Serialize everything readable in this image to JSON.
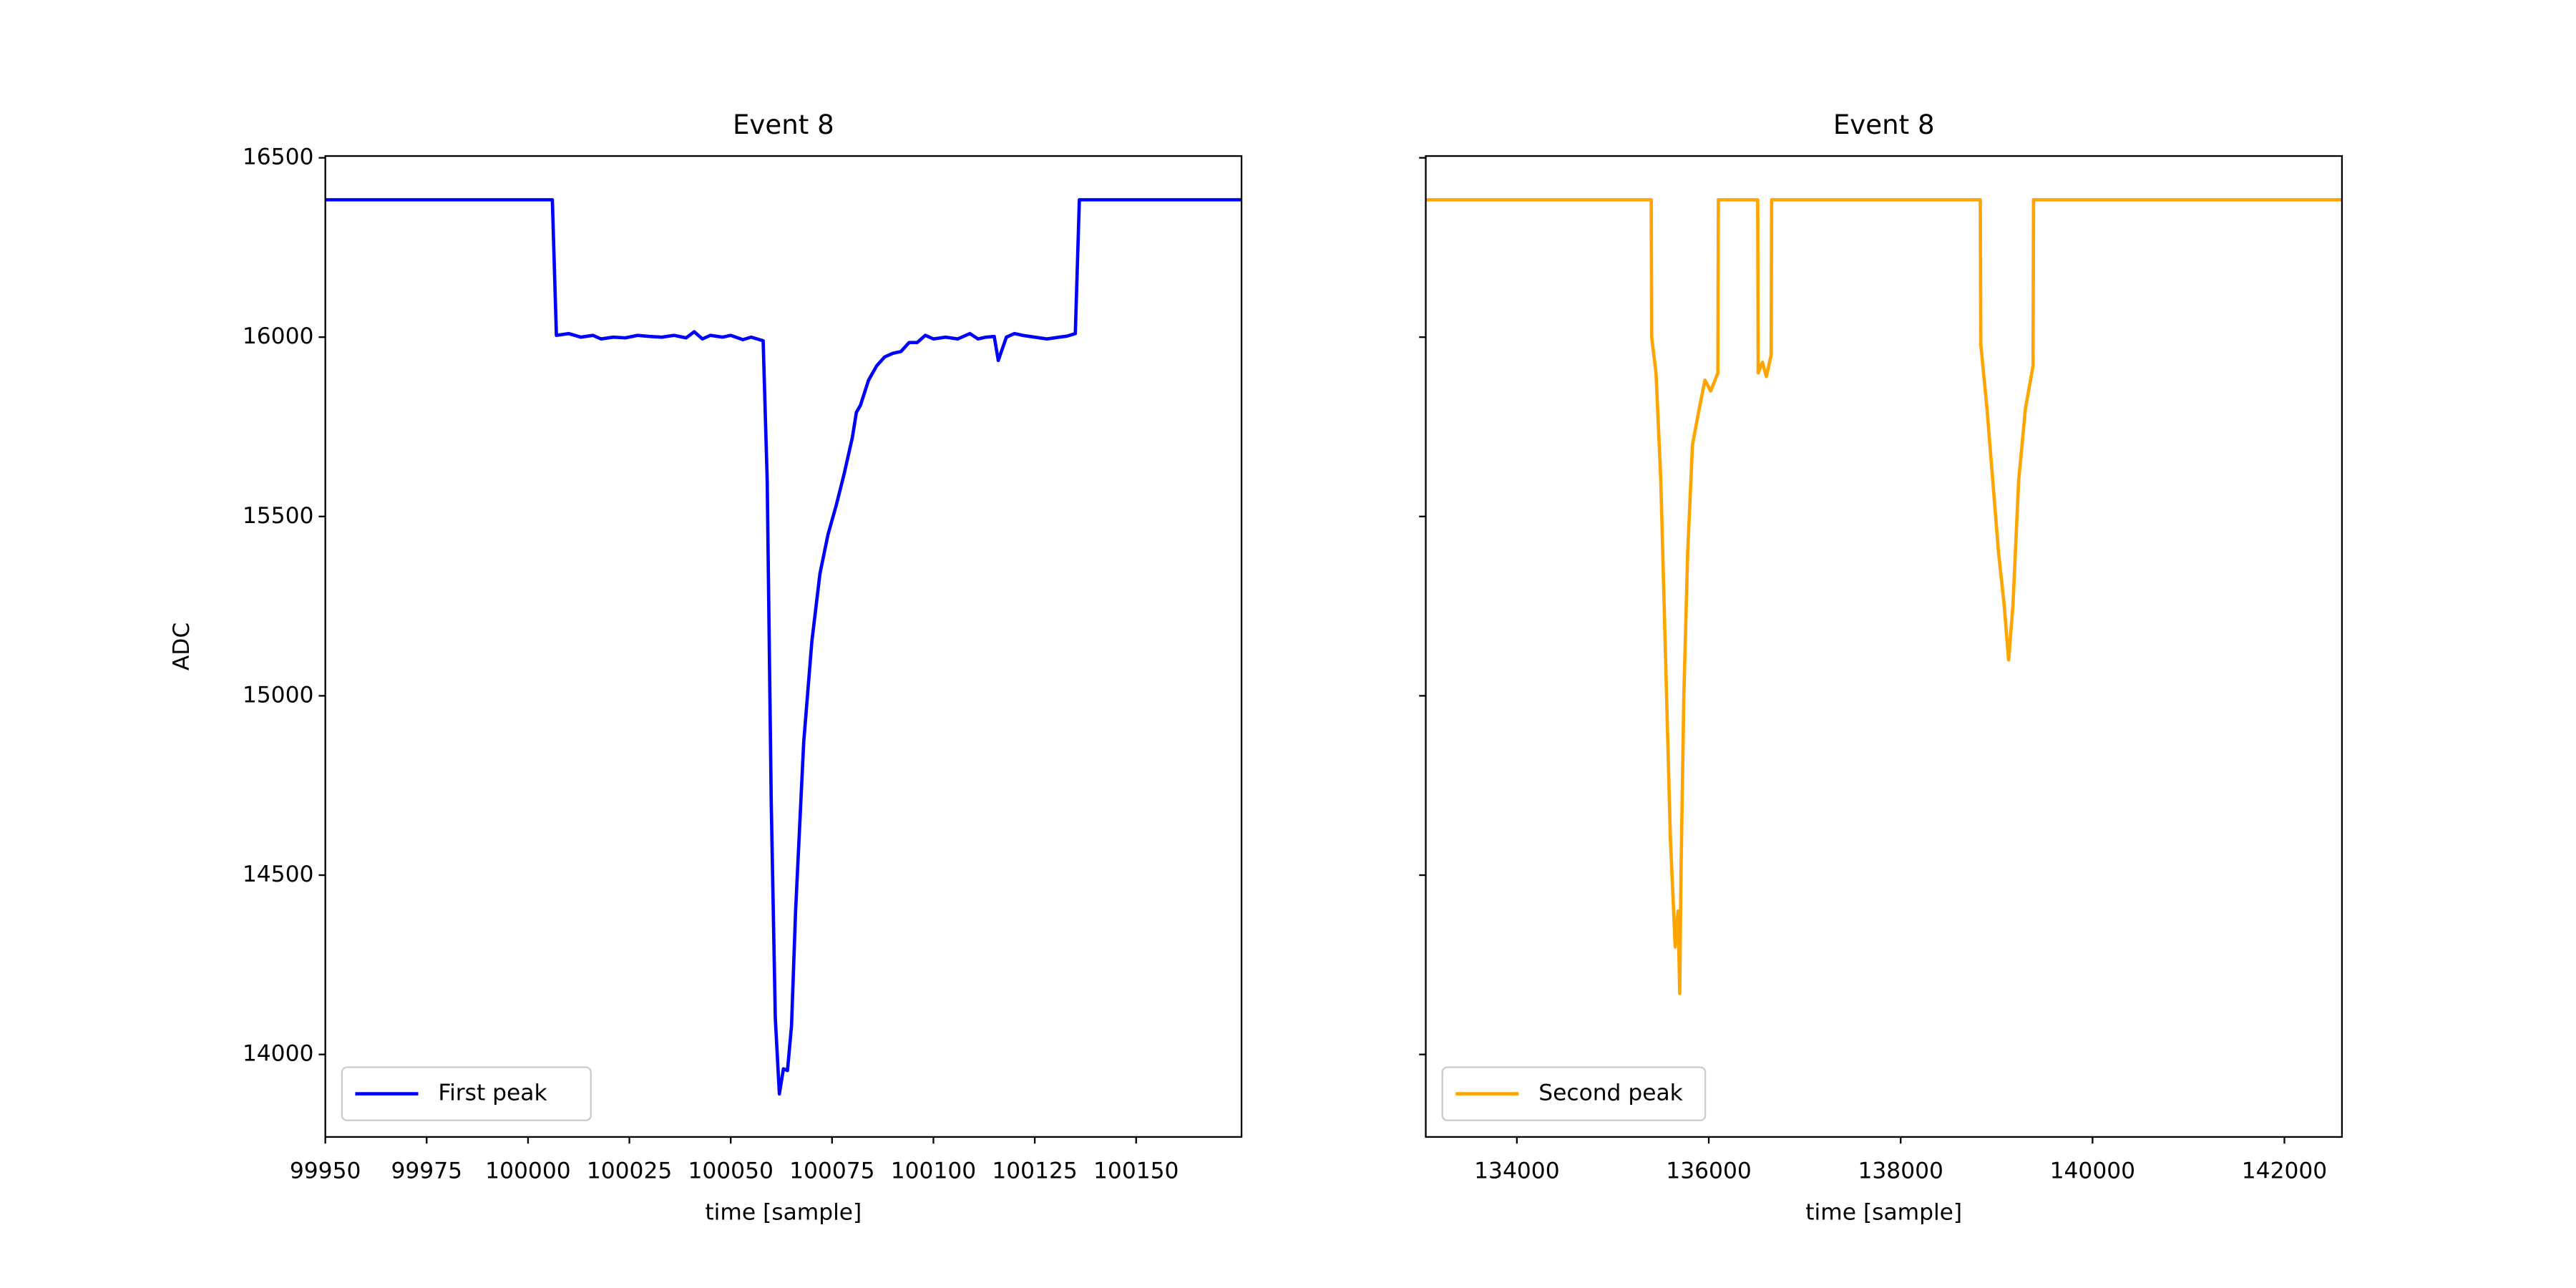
{
  "chart_data": [
    {
      "type": "line",
      "title": "Event 8",
      "x_label": "time [sample]",
      "y_label": "ADC",
      "x": [
        99950,
        100006,
        100007,
        100010,
        100013,
        100016,
        100018,
        100021,
        100024,
        100027,
        100030,
        100033,
        100036,
        100039,
        100041,
        100043,
        100045,
        100048,
        100050,
        100053,
        100055,
        100058,
        100059,
        100060,
        100061,
        100062,
        100063,
        100064,
        100065,
        100066,
        100068,
        100070,
        100072,
        100074,
        100076,
        100078,
        100080,
        100081,
        100082,
        100084,
        100086,
        100088,
        100090,
        100092,
        100094,
        100096,
        100098,
        100100,
        100103,
        100106,
        100109,
        100111,
        100113,
        100115,
        100116,
        100118,
        100120,
        100122,
        100125,
        100128,
        100131,
        100133,
        100135,
        100136,
        100176
      ],
      "series": [
        {
          "name": "First peak",
          "color": "#0000ff",
          "values": [
            16383,
            16383,
            16005,
            16010,
            16000,
            16005,
            15995,
            16000,
            15998,
            16005,
            16002,
            16000,
            16005,
            15998,
            16015,
            15995,
            16005,
            16000,
            16005,
            15993,
            16000,
            15990,
            15600,
            14700,
            14100,
            13890,
            13960,
            13955,
            14080,
            14400,
            14870,
            15150,
            15340,
            15450,
            15530,
            15620,
            15720,
            15790,
            15810,
            15880,
            15920,
            15945,
            15955,
            15960,
            15985,
            15985,
            16005,
            15995,
            16000,
            15995,
            16010,
            15995,
            16000,
            16002,
            15935,
            16000,
            16010,
            16005,
            16000,
            15995,
            16000,
            16003,
            16010,
            16383,
            16383
          ]
        }
      ],
      "xlim": [
        99950,
        100176
      ],
      "xticks": [
        99950,
        99975,
        100000,
        100025,
        100050,
        100075,
        100100,
        100125,
        100150
      ],
      "ylim": [
        13770,
        16505
      ],
      "yticks": [
        14000,
        14500,
        15000,
        15500,
        16000,
        16500
      ],
      "legend": "lower left"
    },
    {
      "type": "line",
      "title": "Event 8",
      "x_label": "time [sample]",
      "x": [
        133050,
        135400,
        135405,
        135450,
        135500,
        135550,
        135600,
        135650,
        135680,
        135697,
        135710,
        135740,
        135780,
        135830,
        135900,
        135960,
        136020,
        136095,
        136100,
        136510,
        136515,
        136560,
        136600,
        136650,
        136655,
        138830,
        138835,
        138900,
        138960,
        139020,
        139080,
        139125,
        139170,
        139230,
        139300,
        139380,
        139385,
        142600
      ],
      "series": [
        {
          "name": "Second peak",
          "color": "#ffa500",
          "values": [
            16383,
            16383,
            16000,
            15900,
            15600,
            15100,
            14600,
            14300,
            14400,
            14170,
            14500,
            15000,
            15400,
            15700,
            15800,
            15880,
            15850,
            15900,
            16383,
            16383,
            15900,
            15930,
            15890,
            15950,
            16383,
            16383,
            15980,
            15800,
            15600,
            15400,
            15250,
            15100,
            15250,
            15600,
            15800,
            15920,
            16383,
            16383
          ]
        }
      ],
      "xlim": [
        133050,
        142600
      ],
      "xticks": [
        134000,
        136000,
        138000,
        140000,
        142000
      ],
      "ylim": [
        13770,
        16505
      ],
      "sharey": true,
      "legend": "lower left"
    }
  ]
}
